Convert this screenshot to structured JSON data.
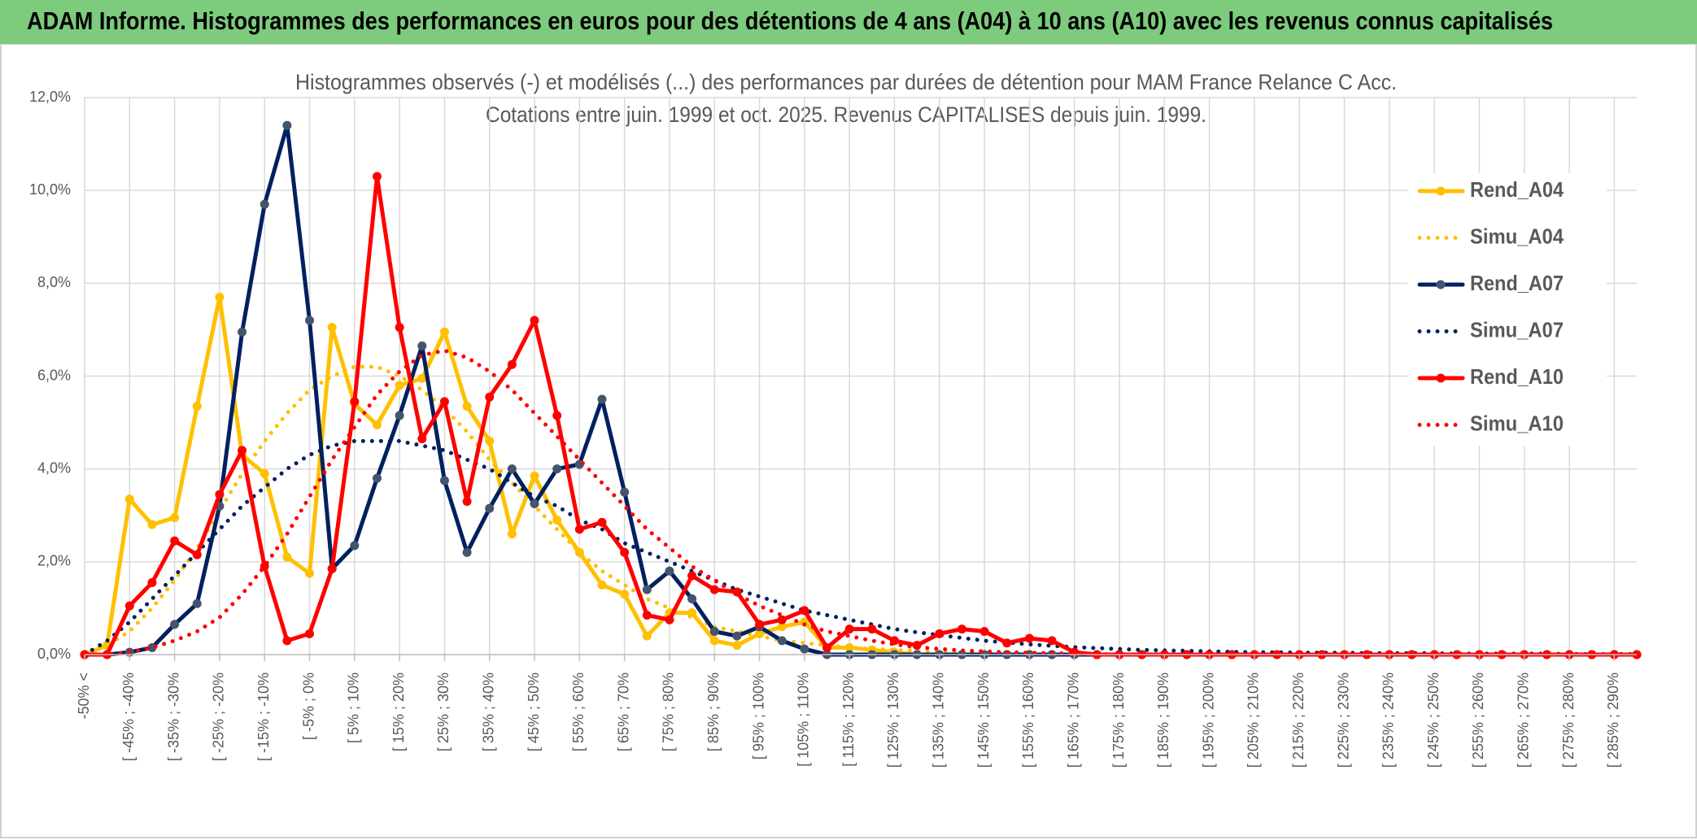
{
  "header": {
    "title": "ADAM Informe. Histogrammes des performances en euros pour des détentions de 4 ans (A04) à 10 ans (A10) avec les revenus connus capitalisés"
  },
  "chart_data": {
    "type": "line",
    "title": "Histogrammes observés (-) et modélisés (...) des performances par durées de détention pour MAM France Relance C Acc.",
    "subtitle": "Cotations entre juin. 1999 et oct. 2025. Revenus CAPITALISES depuis juin. 1999.",
    "categories": [
      "-50% <",
      null,
      "[ -45% ; -40%",
      null,
      "[ -35% ; -30%",
      null,
      "[ -25% ; -20%",
      null,
      "[ -15% ; -10%",
      null,
      "[ -5% ; 0%",
      null,
      "[ 5% ; 10%",
      null,
      "[ 15% ; 20%",
      null,
      "[ 25% ; 30%",
      null,
      "[ 35% ; 40%",
      null,
      "[ 45% ; 50%",
      null,
      "[ 55% ; 60%",
      null,
      "[ 65% ; 70%",
      null,
      "[ 75% ; 80%",
      null,
      "[ 85% ; 90%",
      null,
      "[ 95% ; 100%",
      null,
      "[ 105% ; 110%",
      null,
      "[ 115% ; 120%",
      null,
      "[ 125% ; 130%",
      null,
      "[ 135% ; 140%",
      null,
      "[ 145% ; 150%",
      null,
      "[ 155% ; 160%",
      null,
      "[ 165% ; 170%",
      null,
      "[ 175% ; 180%",
      null,
      "[ 185% ; 190%",
      null,
      "[ 195% ; 200%",
      null,
      "[ 205% ; 210%",
      null,
      "[ 215% ; 220%",
      null,
      "[ 225% ; 230%",
      null,
      "[ 235% ; 240%",
      null,
      "[ 245% ; 250%",
      null,
      "[ 255% ; 260%",
      null,
      "[ 265% ; 270%",
      null,
      "[ 275% ; 280%",
      null,
      "[ 285% ; 290%",
      null
    ],
    "ylim": [
      0,
      12
    ],
    "yticks": [
      {
        "value": 0,
        "label": "0,0%"
      },
      {
        "value": 2,
        "label": "2,0%"
      },
      {
        "value": 4,
        "label": "4,0%"
      },
      {
        "value": 6,
        "label": "6,0%"
      },
      {
        "value": 8,
        "label": "8,0%"
      },
      {
        "value": 10,
        "label": "10,0%"
      },
      {
        "value": 12,
        "label": "12,0%"
      }
    ],
    "grid": true,
    "legend": "right",
    "series": [
      {
        "name": "Rend_A04",
        "color": "#ffc000",
        "style": "solid",
        "values": [
          0,
          0.2,
          3.35,
          2.8,
          2.95,
          5.35,
          7.7,
          4.3,
          3.9,
          2.1,
          1.75,
          7.05,
          5.4,
          4.95,
          5.8,
          5.95,
          6.95,
          5.35,
          4.6,
          2.6,
          3.85,
          2.9,
          2.2,
          1.5,
          1.3,
          0.4,
          0.9,
          0.9,
          0.3,
          0.2,
          0.45,
          0.6,
          0.7,
          0.15,
          0.15,
          0.1,
          0.05,
          0,
          0,
          0,
          0,
          0,
          0,
          0,
          0,
          0,
          0,
          0,
          0,
          0,
          0,
          0,
          0,
          0,
          0,
          0,
          0,
          0,
          0,
          0,
          0,
          0,
          0,
          0,
          0,
          0,
          0,
          0,
          0,
          0
        ]
      },
      {
        "name": "Simu_A04",
        "color": "#ffc000",
        "style": "dotted",
        "values": [
          0,
          0.2,
          0.5,
          1.0,
          1.6,
          2.3,
          3.1,
          3.9,
          4.6,
          5.2,
          5.7,
          6.0,
          6.2,
          6.2,
          6.0,
          5.7,
          5.3,
          4.8,
          4.2,
          3.7,
          3.2,
          2.7,
          2.2,
          1.8,
          1.5,
          1.2,
          1.0,
          0.8,
          0.6,
          0.5,
          0.4,
          0.3,
          0.25,
          0.2,
          0.15,
          0.12,
          0.1,
          0.08,
          0.06,
          0.05,
          0.04,
          0.03,
          0.02,
          0.02,
          0.01,
          0,
          0,
          0,
          0,
          0,
          0,
          0,
          0,
          0,
          0,
          0,
          0,
          0,
          0,
          0,
          0,
          0,
          0,
          0,
          0,
          0,
          0,
          0,
          0,
          0
        ]
      },
      {
        "name": "Rend_A07",
        "color": "#002060",
        "style": "solid",
        "values": [
          0,
          0,
          0.05,
          0.15,
          0.65,
          1.1,
          3.2,
          6.95,
          9.7,
          11.4,
          7.2,
          1.85,
          2.35,
          3.8,
          5.15,
          6.65,
          3.75,
          2.2,
          3.15,
          4.0,
          3.25,
          4.0,
          4.1,
          5.5,
          3.5,
          1.4,
          1.8,
          1.2,
          0.5,
          0.4,
          0.6,
          0.3,
          0.12,
          0,
          0,
          0,
          0,
          0,
          0,
          0,
          0,
          0,
          0,
          0,
          0,
          0,
          0,
          0,
          0,
          0,
          0,
          0,
          0,
          0,
          0,
          0,
          0,
          0,
          0,
          0,
          0,
          0,
          0,
          0,
          0,
          0,
          0,
          0,
          0,
          0
        ]
      },
      {
        "name": "Simu_A07",
        "color": "#002060",
        "style": "dotted",
        "values": [
          0,
          0.3,
          0.7,
          1.2,
          1.7,
          2.2,
          2.7,
          3.2,
          3.6,
          4.0,
          4.3,
          4.5,
          4.6,
          4.6,
          4.6,
          4.5,
          4.4,
          4.2,
          4.0,
          3.7,
          3.4,
          3.2,
          2.9,
          2.7,
          2.4,
          2.2,
          2.0,
          1.8,
          1.6,
          1.4,
          1.25,
          1.1,
          0.95,
          0.85,
          0.75,
          0.65,
          0.55,
          0.48,
          0.42,
          0.36,
          0.3,
          0.26,
          0.22,
          0.19,
          0.16,
          0.14,
          0.12,
          0.1,
          0.09,
          0.08,
          0.07,
          0.06,
          0.05,
          0.05,
          0.04,
          0.04,
          0.04,
          0.03,
          0.03,
          0.03,
          0.03,
          0.02,
          0.02,
          0.02,
          0.02,
          0.02,
          0.01,
          0.01,
          0.01,
          0.01
        ]
      },
      {
        "name": "Rend_A10",
        "color": "#ff0000",
        "style": "solid",
        "values": [
          0,
          0,
          1.05,
          1.55,
          2.45,
          2.15,
          3.45,
          4.4,
          1.9,
          0.3,
          0.45,
          1.85,
          5.45,
          10.3,
          7.05,
          4.65,
          5.45,
          3.3,
          5.55,
          6.25,
          7.2,
          5.15,
          2.7,
          2.85,
          2.2,
          0.85,
          0.75,
          1.7,
          1.4,
          1.35,
          0.65,
          0.75,
          0.95,
          0.15,
          0.55,
          0.55,
          0.3,
          0.2,
          0.45,
          0.55,
          0.5,
          0.25,
          0.35,
          0.3,
          0.05,
          0,
          0,
          0,
          0,
          0,
          0,
          0,
          0,
          0,
          0,
          0,
          0,
          0,
          0,
          0,
          0,
          0,
          0,
          0,
          0,
          0,
          0,
          0,
          0,
          0
        ]
      },
      {
        "name": "Simu_A10",
        "color": "#ff0000",
        "style": "dotted",
        "values": [
          0,
          0,
          0.05,
          0.15,
          0.3,
          0.5,
          0.8,
          1.3,
          1.9,
          2.6,
          3.4,
          4.2,
          4.9,
          5.6,
          6.1,
          6.45,
          6.55,
          6.4,
          6.1,
          5.7,
          5.2,
          4.7,
          4.2,
          3.7,
          3.2,
          2.7,
          2.3,
          1.9,
          1.6,
          1.3,
          1.05,
          0.85,
          0.65,
          0.5,
          0.4,
          0.3,
          0.22,
          0.16,
          0.12,
          0.09,
          0.07,
          0.05,
          0.04,
          0.03,
          0.02,
          0.01,
          0,
          0,
          0,
          0,
          0,
          0,
          0,
          0,
          0,
          0,
          0,
          0,
          0,
          0,
          0,
          0,
          0,
          0,
          0,
          0,
          0,
          0,
          0,
          0
        ]
      }
    ]
  }
}
